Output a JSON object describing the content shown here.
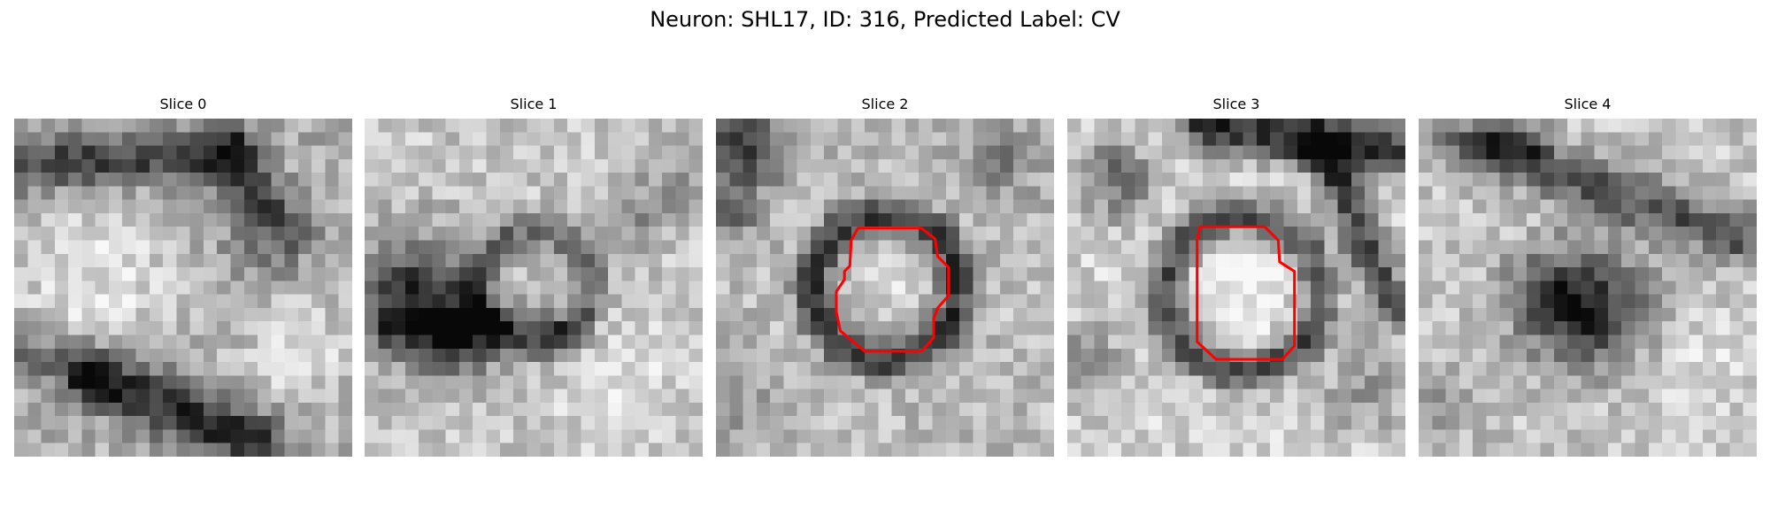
{
  "figure": {
    "title": "Neuron: SHL17, ID: 316, Predicted Label: CV"
  },
  "slices": [
    {
      "title": "Slice 0",
      "has_contour": false
    },
    {
      "title": "Slice 1",
      "has_contour": false
    },
    {
      "title": "Slice 2",
      "has_contour": true
    },
    {
      "title": "Slice 3",
      "has_contour": true
    },
    {
      "title": "Slice 4",
      "has_contour": false
    }
  ],
  "colors": {
    "contour": "#ff0000",
    "background": "#ffffff"
  },
  "image": {
    "colormap": "grayscale",
    "grid": "25x25"
  }
}
